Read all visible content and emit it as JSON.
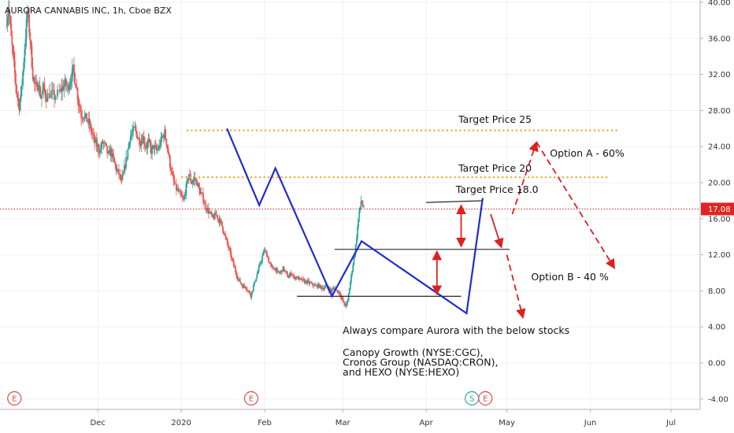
{
  "chart_data": {
    "type": "candlestick",
    "title": "AURORA CANNABIS INC, 1h, Cboe BZX",
    "y_axis": {
      "side": "right",
      "ylim": [
        -5.5,
        40
      ],
      "ticks": [
        40,
        36,
        32,
        28,
        24,
        20,
        16,
        12,
        8,
        4,
        0,
        -4
      ],
      "tick_labels": [
        "40.00",
        "36.00",
        "32.00",
        "28.00",
        "24.00",
        "20.00",
        "16.00",
        "12.00",
        "8.00",
        "4.00",
        "0.00",
        "-4.00"
      ]
    },
    "x_axis": {
      "labels": [
        "Dec",
        "2020",
        "Feb",
        "Mar",
        "Apr",
        "May",
        "Jun",
        "Jul"
      ],
      "label_days": [
        44,
        75,
        106,
        135,
        166,
        196,
        227,
        257
      ]
    },
    "x_domain_days": [
      10,
      252
    ],
    "last_price": {
      "value": 17.08,
      "label": "17.08",
      "color": "#e02424"
    },
    "price_path": [
      [
        10,
        37.5
      ],
      [
        11,
        39.5
      ],
      [
        12,
        36
      ],
      [
        13,
        33
      ],
      [
        14,
        30
      ],
      [
        15,
        28.5
      ],
      [
        16,
        31
      ],
      [
        17,
        35
      ],
      [
        18,
        39
      ],
      [
        19,
        36
      ],
      [
        20,
        32
      ],
      [
        21,
        30.5
      ],
      [
        22,
        31
      ],
      [
        23,
        29.5
      ],
      [
        24,
        30.5
      ],
      [
        25,
        29.5
      ],
      [
        27,
        30
      ],
      [
        28,
        29.5
      ],
      [
        30,
        30
      ],
      [
        31,
        30.5
      ],
      [
        32,
        31
      ],
      [
        33,
        30.5
      ],
      [
        34,
        31.5
      ],
      [
        35,
        32.5
      ],
      [
        36,
        31
      ],
      [
        37,
        29
      ],
      [
        38,
        27.5
      ],
      [
        39,
        27.5
      ],
      [
        40,
        27
      ],
      [
        41,
        26.5
      ],
      [
        42,
        25.5
      ],
      [
        43,
        24.5
      ],
      [
        44,
        24
      ],
      [
        45,
        23.5
      ],
      [
        46,
        24.5
      ],
      [
        47,
        24
      ],
      [
        48,
        23
      ],
      [
        49,
        23.5
      ],
      [
        50,
        22.5
      ],
      [
        51,
        21.5
      ],
      [
        52,
        21
      ],
      [
        53,
        20
      ],
      [
        54,
        21.5
      ],
      [
        55,
        23
      ],
      [
        56,
        25
      ],
      [
        57,
        25.5
      ],
      [
        58,
        26
      ],
      [
        59,
        25
      ],
      [
        60,
        24.5
      ],
      [
        61,
        25
      ],
      [
        62,
        24
      ],
      [
        63,
        24.5
      ],
      [
        64,
        23.5
      ],
      [
        65,
        24
      ],
      [
        66,
        23.5
      ],
      [
        67,
        24
      ],
      [
        68,
        25
      ],
      [
        69,
        25.5
      ],
      [
        70,
        24
      ],
      [
        71,
        22
      ],
      [
        72,
        20.5
      ],
      [
        73,
        19.5
      ],
      [
        74,
        19
      ],
      [
        75,
        18.5
      ],
      [
        76,
        18
      ],
      [
        77,
        19.5
      ],
      [
        78,
        21
      ],
      [
        79,
        20
      ],
      [
        80,
        20.5
      ],
      [
        81,
        20
      ],
      [
        82,
        19
      ],
      [
        83,
        18.5
      ],
      [
        84,
        17.5
      ],
      [
        85,
        17
      ],
      [
        86,
        16.5
      ],
      [
        87,
        16
      ],
      [
        88,
        16.5
      ],
      [
        89,
        16
      ],
      [
        90,
        15.5
      ],
      [
        91,
        14.5
      ],
      [
        92,
        13.5
      ],
      [
        93,
        12.5
      ],
      [
        94,
        11.5
      ],
      [
        95,
        10.5
      ],
      [
        96,
        9.5
      ],
      [
        97,
        9
      ],
      [
        98,
        8.5
      ],
      [
        99,
        8.5
      ],
      [
        100,
        8
      ],
      [
        101,
        7.5
      ],
      [
        102,
        8.5
      ],
      [
        103,
        9.5
      ],
      [
        104,
        10.5
      ],
      [
        105,
        11.5
      ],
      [
        106,
        12.5
      ],
      [
        107,
        12
      ],
      [
        108,
        11
      ],
      [
        109,
        10.5
      ],
      [
        110,
        10.5
      ],
      [
        111,
        10
      ],
      [
        112,
        10
      ],
      [
        113,
        10.5
      ],
      [
        114,
        10
      ],
      [
        115,
        9.5
      ],
      [
        116,
        10
      ],
      [
        117,
        9.5
      ],
      [
        118,
        9.5
      ],
      [
        119,
        9.3
      ],
      [
        120,
        9.2
      ],
      [
        121,
        9
      ],
      [
        122,
        9
      ],
      [
        123,
        8.8
      ],
      [
        124,
        8.7
      ],
      [
        125,
        8.5
      ],
      [
        126,
        8.6
      ],
      [
        127,
        8.4
      ],
      [
        128,
        8.3
      ],
      [
        129,
        8.5
      ],
      [
        130,
        8.2
      ],
      [
        131,
        8
      ],
      [
        132,
        8.3
      ],
      [
        133,
        8
      ],
      [
        134,
        7.8
      ],
      [
        135,
        7
      ],
      [
        136,
        6.3
      ],
      [
        137,
        6.8
      ],
      [
        138,
        9
      ],
      [
        139,
        11
      ],
      [
        140,
        13
      ],
      [
        141,
        16
      ],
      [
        142,
        18
      ],
      [
        143,
        17.08
      ]
    ],
    "annotations": {
      "target_25": {
        "text": "Target Price 25",
        "value": 25.8
      },
      "target_20": {
        "text": "Target Price 20",
        "value": 20.6
      },
      "target_18": {
        "text": "Target Price 18.0",
        "value": 18.0
      },
      "option_a": "Option A - 60%",
      "option_b": "Option B - 40 %",
      "compare_heading": "Always compare Aurora with the below stocks",
      "compare_lines": [
        "Canopy Growth (NYSE:CGC),",
        "Cronos Group (NASDAQ:CRON),",
        "and HEXO (NYSE:HEXO)"
      ]
    },
    "support_lines": [
      {
        "from": [
          132,
          12.6
        ],
        "to": [
          197,
          12.6
        ]
      },
      {
        "from": [
          118,
          7.4
        ],
        "to": [
          179,
          7.4
        ]
      },
      {
        "from": [
          166,
          17.8
        ],
        "to": [
          187,
          18.0
        ]
      }
    ],
    "pattern_lines": [
      [
        [
          92,
          26.0
        ],
        [
          104,
          17.5
        ],
        [
          110,
          21.6
        ],
        [
          131,
          7.4
        ],
        [
          142,
          13.5
        ],
        [
          181,
          5.5
        ],
        [
          187,
          18.3
        ]
      ]
    ],
    "measure_arrows": [
      {
        "x": 179,
        "from": 17.5,
        "to": 12.9
      },
      {
        "x": 170,
        "from": 12.4,
        "to": 7.6
      }
    ],
    "projection_arrows": [
      {
        "from": [
          190,
          16.5
        ],
        "to": [
          194,
          12.8
        ],
        "style": "solid"
      },
      {
        "from": [
          198,
          16.5
        ],
        "to": [
          207,
          24.5
        ],
        "style": "dashed"
      },
      {
        "from": [
          207,
          24.5
        ],
        "to": [
          236,
          10.5
        ],
        "style": "dashed"
      },
      {
        "from": [
          196,
          12
        ],
        "to": [
          202,
          5.0
        ],
        "style": "dashed"
      }
    ],
    "event_markers": [
      {
        "label": "E",
        "day": 13,
        "color": "#e04a4a"
      },
      {
        "label": "E",
        "day": 101,
        "color": "#e04a4a"
      },
      {
        "label": "S",
        "day": 183,
        "color": "#2aa69a"
      },
      {
        "label": "E",
        "day": 188,
        "color": "#e04a4a"
      }
    ],
    "colors": {
      "up": "#26a69a",
      "down": "#ef5350",
      "pattern": "#1f2bd1",
      "target_dotted": "#f5a623",
      "arrow": "#e01e1e",
      "grid": "#eef0f3"
    },
    "grid": true
  }
}
